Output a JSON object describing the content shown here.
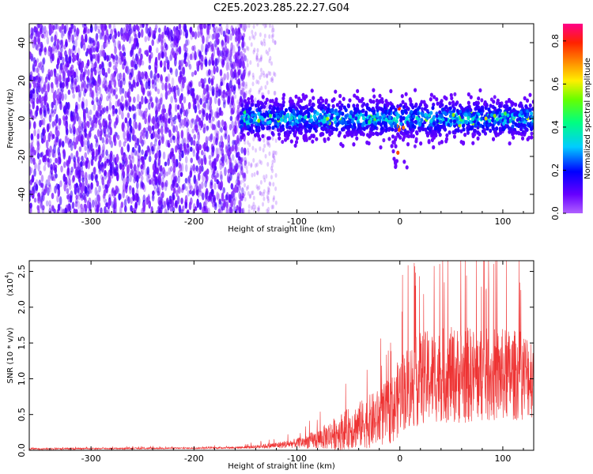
{
  "title": "C2E5.2023.285.22.27.G04",
  "chart_data": [
    {
      "type": "heatmap",
      "xlabel": "Height of straight line (km)",
      "ylabel": "Frequency (Hz)",
      "xlim": [
        -360,
        130
      ],
      "ylim": [
        -50,
        50
      ],
      "x_ticks": [
        -300,
        -200,
        -100,
        0,
        100
      ],
      "y_ticks": [
        -40,
        -20,
        0,
        20,
        40
      ],
      "colorbar": {
        "label": "Normalized spectral amplitude",
        "range": [
          0,
          0.88
        ],
        "ticks": [
          0.0,
          0.2,
          0.4,
          0.6,
          0.8
        ],
        "colormap": "hsv-reversed (violet-blue-cyan-green-yellow-orange-red-magenta)"
      },
      "description_regions": [
        {
          "x_range": [
            -360,
            -155
          ],
          "freq_range": [
            -50,
            50
          ],
          "amplitude": "low, diffuse noise"
        },
        {
          "x_range": [
            -155,
            130
          ],
          "freq_range": [
            -10,
            10
          ],
          "amplitude": "moderate band centered near 0 Hz"
        },
        {
          "x_range": [
            -10,
            10
          ],
          "freq_range": [
            -30,
            5
          ],
          "amplitude": "dip feature to about -30 Hz"
        }
      ]
    },
    {
      "type": "line",
      "xlabel": "Height of straight line (km)",
      "ylabel": "SNR (10 * v/v)",
      "y_exponent_label": "(x10",
      "y_exponent_power": "4",
      "xlim": [
        -360,
        130
      ],
      "ylim": [
        0,
        2.65
      ],
      "x_ticks": [
        -300,
        -200,
        -100,
        0,
        100
      ],
      "y_ticks": [
        0.0,
        0.5,
        1.0,
        1.5,
        2.0,
        2.5
      ],
      "y_tick_labels": [
        "0.0",
        "0.5",
        "1.0",
        "1.5",
        "2.0",
        "2.5"
      ],
      "color": "#ee3333",
      "envelope": {
        "x": [
          -360,
          -200,
          -150,
          -120,
          -100,
          -80,
          -60,
          -40,
          -20,
          -5,
          0,
          20,
          40,
          60,
          80,
          100,
          130
        ],
        "mean": [
          0.02,
          0.03,
          0.04,
          0.07,
          0.1,
          0.15,
          0.25,
          0.35,
          0.45,
          0.6,
          0.8,
          1.0,
          1.05,
          1.05,
          1.05,
          1.05,
          1.05
        ],
        "spread": [
          0.02,
          0.02,
          0.03,
          0.08,
          0.12,
          0.25,
          0.45,
          0.6,
          0.75,
          0.9,
          1.0,
          1.2,
          1.2,
          1.25,
          1.2,
          1.2,
          1.1
        ]
      }
    }
  ]
}
